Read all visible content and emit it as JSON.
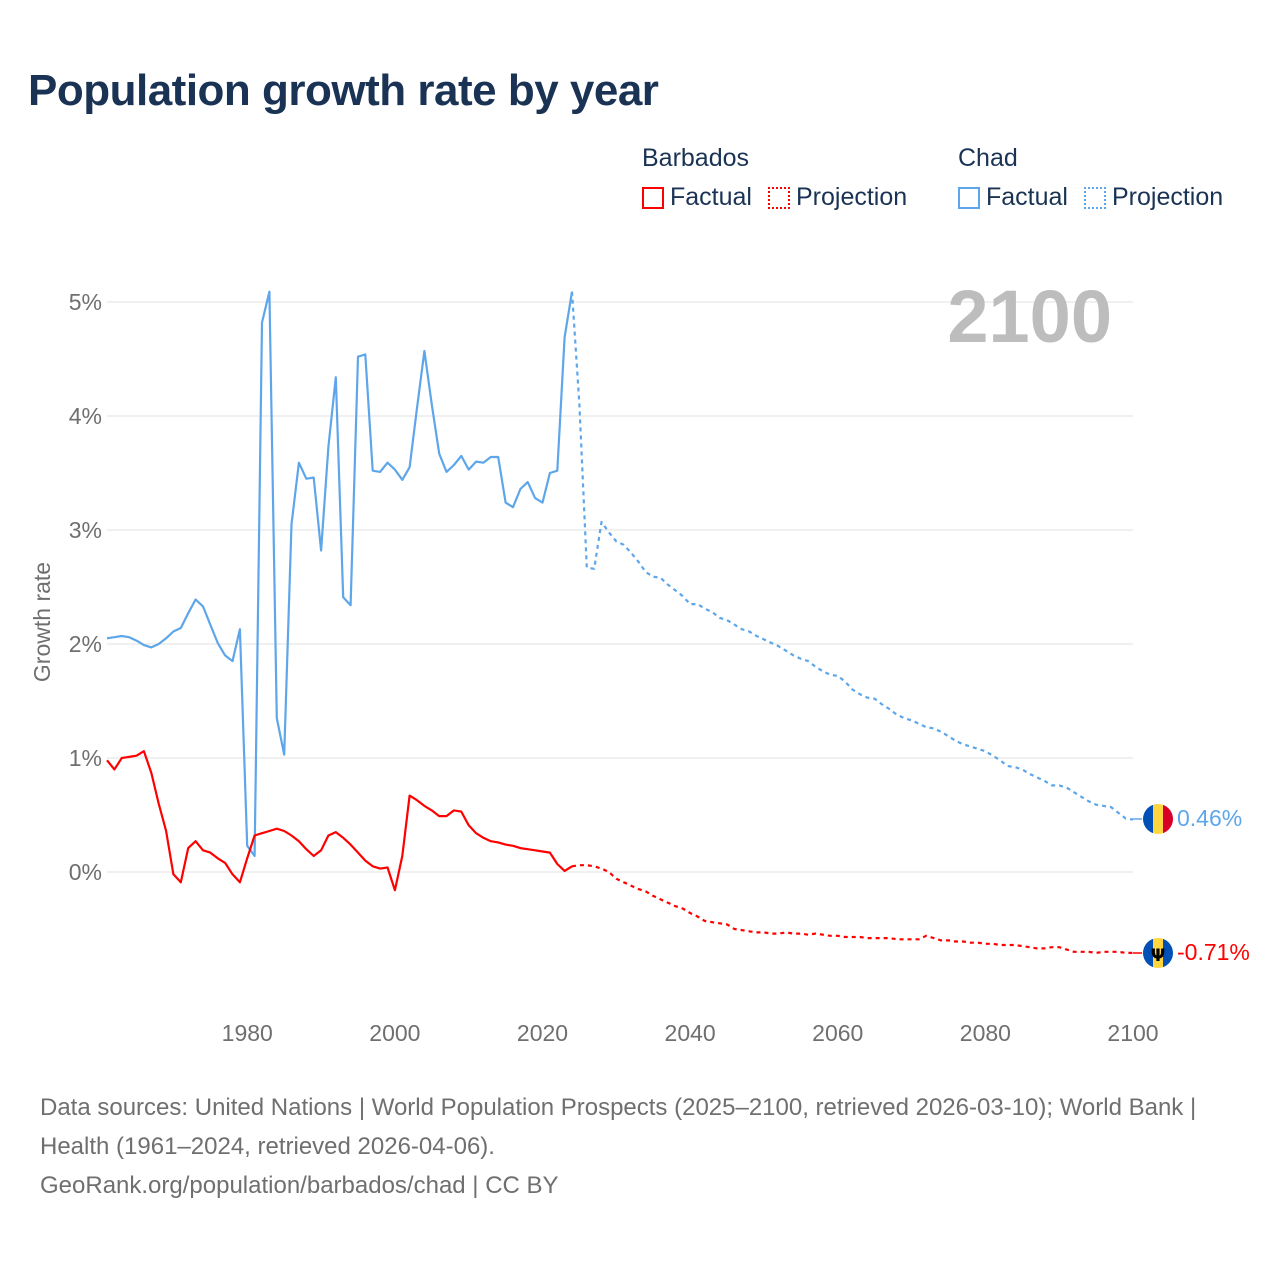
{
  "title": "Population growth rate by year",
  "legend": {
    "groups": [
      {
        "name": "Barbados",
        "factual": "Factual",
        "projection": "Projection",
        "color": "#ff0000"
      },
      {
        "name": "Chad",
        "factual": "Factual",
        "projection": "Projection",
        "color": "#5ea6ea"
      }
    ]
  },
  "year_label": "2100",
  "end_labels": {
    "chad": "0.46%",
    "barbados": "-0.71%"
  },
  "footer": {
    "sources": "Data sources: United Nations | World Population Prospects (2025–2100, retrieved 2026-03-10); World Bank | Health (1961–2024, retrieved 2026-04-06).",
    "credit": "GeoRank.org/population/barbados/chad | CC BY"
  },
  "chart_data": {
    "type": "line",
    "title": "Population growth rate by year",
    "xlabel": "",
    "ylabel": "Growth rate",
    "xlim": [
      1961,
      2100
    ],
    "ylim": [
      -1.1,
      5.2
    ],
    "x_ticks": [
      1980,
      2000,
      2020,
      2040,
      2060,
      2080,
      2100
    ],
    "y_ticks": [
      0,
      1,
      2,
      3,
      4,
      5
    ],
    "y_tick_labels": [
      "0%",
      "1%",
      "2%",
      "3%",
      "4%",
      "5%"
    ],
    "grid": true,
    "legend_position": "top-right",
    "series": [
      {
        "name": "Chad",
        "kind": "Factual",
        "color": "#5ea6ea",
        "start_year": 1961,
        "values": [
          2.05,
          2.06,
          2.07,
          2.06,
          2.03,
          1.99,
          1.97,
          2.0,
          2.05,
          2.11,
          2.14,
          2.27,
          2.39,
          2.33,
          2.17,
          2.01,
          1.9,
          1.85,
          2.13,
          0.23,
          0.14,
          4.82,
          5.09,
          1.35,
          1.03,
          3.05,
          3.59,
          3.45,
          3.46,
          2.82,
          3.73,
          4.34,
          2.41,
          2.34,
          4.52,
          4.54,
          3.52,
          3.51,
          3.59,
          3.53,
          3.44,
          3.55,
          4.07,
          4.57,
          4.1,
          3.67,
          3.51,
          3.57,
          3.65,
          3.53,
          3.6,
          3.59,
          3.64,
          3.64,
          3.24,
          3.2,
          3.36,
          3.42,
          3.28,
          3.24,
          3.5,
          3.52,
          4.69,
          5.09
        ]
      },
      {
        "name": "Chad",
        "kind": "Projection",
        "color": "#5ea6ea",
        "start_year": 2024,
        "values": [
          5.09,
          4.1,
          2.67,
          2.66,
          3.07,
          2.98,
          2.9,
          2.87,
          2.8,
          2.72,
          2.63,
          2.59,
          2.58,
          2.52,
          2.47,
          2.42,
          2.35,
          2.35,
          2.31,
          2.28,
          2.23,
          2.21,
          2.17,
          2.13,
          2.11,
          2.07,
          2.04,
          2.01,
          1.98,
          1.94,
          1.9,
          1.87,
          1.85,
          1.8,
          1.76,
          1.73,
          1.72,
          1.67,
          1.6,
          1.56,
          1.53,
          1.52,
          1.47,
          1.43,
          1.38,
          1.35,
          1.33,
          1.3,
          1.27,
          1.26,
          1.23,
          1.19,
          1.15,
          1.12,
          1.1,
          1.08,
          1.06,
          1.02,
          0.98,
          0.93,
          0.92,
          0.9,
          0.86,
          0.83,
          0.8,
          0.76,
          0.76,
          0.74,
          0.7,
          0.66,
          0.62,
          0.59,
          0.58,
          0.57,
          0.52,
          0.47,
          0.46
        ]
      },
      {
        "name": "Barbados",
        "kind": "Factual",
        "color": "#ff0000",
        "start_year": 1961,
        "values": [
          0.98,
          0.9,
          1.0,
          1.01,
          1.02,
          1.06,
          0.87,
          0.6,
          0.36,
          -0.02,
          -0.09,
          0.21,
          0.27,
          0.19,
          0.17,
          0.12,
          0.08,
          -0.02,
          -0.09,
          0.12,
          0.32,
          0.34,
          0.36,
          0.38,
          0.36,
          0.32,
          0.27,
          0.2,
          0.14,
          0.19,
          0.32,
          0.35,
          0.3,
          0.24,
          0.17,
          0.1,
          0.05,
          0.03,
          0.04,
          -0.16,
          0.14,
          0.67,
          0.63,
          0.58,
          0.54,
          0.49,
          0.49,
          0.54,
          0.53,
          0.41,
          0.34,
          0.3,
          0.27,
          0.26,
          0.24,
          0.23,
          0.21,
          0.2,
          0.19,
          0.18,
          0.17,
          0.07,
          0.01,
          0.05
        ]
      },
      {
        "name": "Barbados",
        "kind": "Projection",
        "color": "#ff0000",
        "start_year": 2024,
        "values": [
          0.05,
          0.06,
          0.06,
          0.05,
          0.03,
          0.0,
          -0.06,
          -0.09,
          -0.12,
          -0.15,
          -0.17,
          -0.21,
          -0.24,
          -0.27,
          -0.3,
          -0.32,
          -0.36,
          -0.39,
          -0.43,
          -0.44,
          -0.45,
          -0.46,
          -0.5,
          -0.51,
          -0.52,
          -0.53,
          -0.53,
          -0.54,
          -0.54,
          -0.53,
          -0.54,
          -0.54,
          -0.55,
          -0.54,
          -0.55,
          -0.56,
          -0.56,
          -0.57,
          -0.57,
          -0.57,
          -0.58,
          -0.58,
          -0.58,
          -0.58,
          -0.59,
          -0.59,
          -0.59,
          -0.59,
          -0.56,
          -0.58,
          -0.6,
          -0.6,
          -0.61,
          -0.61,
          -0.62,
          -0.62,
          -0.63,
          -0.63,
          -0.64,
          -0.64,
          -0.64,
          -0.65,
          -0.66,
          -0.67,
          -0.67,
          -0.66,
          -0.66,
          -0.68,
          -0.7,
          -0.7,
          -0.7,
          -0.71,
          -0.7,
          -0.7,
          -0.7,
          -0.71,
          -0.71
        ]
      }
    ]
  }
}
